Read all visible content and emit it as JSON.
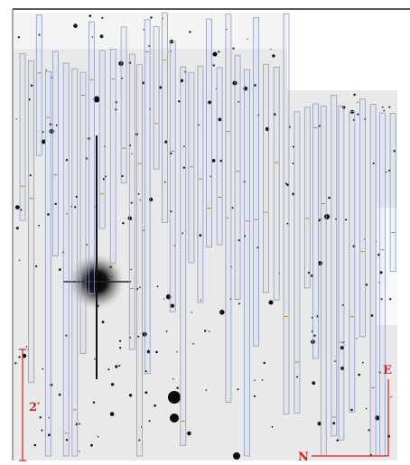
{
  "labels": {
    "scale": "2′",
    "north": "N",
    "east": "E"
  }
}
